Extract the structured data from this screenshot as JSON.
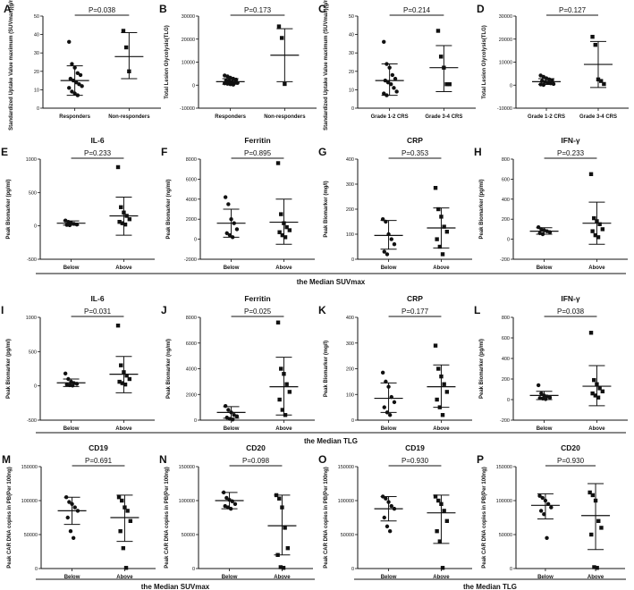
{
  "chart_data": [
    {
      "id": "A",
      "type": "scatter",
      "title": "",
      "pvalue": "P=0.038",
      "ylabel": "Standardized Uptake Value maximum (SUVmax)(g/ml)",
      "ylim": [
        0,
        50
      ],
      "yticks": [
        0,
        10,
        20,
        30,
        40,
        50
      ],
      "categories": [
        "Responders",
        "Non-responders"
      ],
      "groups": [
        {
          "name": "Responders",
          "marker": "circle",
          "points": [
            36,
            24,
            22,
            19,
            18,
            16,
            15,
            14,
            13,
            12,
            11,
            9,
            8,
            7
          ],
          "mean": 15,
          "sd_low": 7,
          "sd_high": 23
        },
        {
          "name": "Non-responders",
          "marker": "square",
          "points": [
            42,
            33,
            20
          ],
          "mean": 28,
          "sd_low": 16,
          "sd_high": 41
        }
      ]
    },
    {
      "id": "B",
      "type": "scatter",
      "title": "",
      "pvalue": "P=0.173",
      "ylabel": "Total Lesion Glycolysis(TLG)",
      "ylim": [
        -10000,
        30000
      ],
      "yticks": [
        -10000,
        0,
        10000,
        20000,
        30000
      ],
      "categories": [
        "Responders",
        "Non-responders"
      ],
      "groups": [
        {
          "name": "Responders",
          "marker": "circle",
          "points": [
            4200,
            3800,
            3200,
            2800,
            2400,
            2000,
            1800,
            1500,
            1200,
            1000,
            800,
            600,
            400,
            200
          ],
          "mean": 1500,
          "sd_low": 400,
          "sd_high": 2800
        },
        {
          "name": "Non-responders",
          "marker": "square",
          "points": [
            25500,
            20500,
            500
          ],
          "mean": 13000,
          "sd_low": 1500,
          "sd_high": 24500
        }
      ]
    },
    {
      "id": "C",
      "type": "scatter",
      "title": "",
      "pvalue": "P=0.214",
      "ylabel": "Standardized Uptake Value maximum (SUVmax)(g/ml)",
      "ylim": [
        0,
        50
      ],
      "yticks": [
        0,
        10,
        20,
        30,
        40,
        50
      ],
      "categories": [
        "Grade 1-2 CRS",
        "Grade 3-4 CRS"
      ],
      "groups": [
        {
          "name": "Grade 1-2 CRS",
          "marker": "circle",
          "points": [
            36,
            24,
            22,
            18,
            16,
            15,
            14,
            13,
            11,
            9,
            8,
            7
          ],
          "mean": 15,
          "sd_low": 7,
          "sd_high": 24
        },
        {
          "name": "Grade 3-4 CRS",
          "marker": "square",
          "points": [
            42,
            28,
            22,
            13,
            13
          ],
          "mean": 22,
          "sd_low": 9,
          "sd_high": 34
        }
      ]
    },
    {
      "id": "D",
      "type": "scatter",
      "title": "",
      "pvalue": "P=0.127",
      "ylabel": "Total Lesion Glycolysis(TLG)",
      "ylim": [
        -10000,
        30000
      ],
      "yticks": [
        -10000,
        0,
        10000,
        20000,
        30000
      ],
      "categories": [
        "Grade 1-2 CRS",
        "Grade 3-4 CRS"
      ],
      "groups": [
        {
          "name": "Grade 1-2 CRS",
          "marker": "circle",
          "points": [
            4200,
            3600,
            3000,
            2500,
            2100,
            1800,
            1400,
            1100,
            800,
            500,
            300,
            100
          ],
          "mean": 1500,
          "sd_low": 300,
          "sd_high": 2800
        },
        {
          "name": "Grade 3-4 CRS",
          "marker": "square",
          "points": [
            21000,
            17500,
            2500,
            1800,
            500
          ],
          "mean": 9000,
          "sd_low": -1000,
          "sd_high": 19000
        }
      ]
    },
    {
      "id": "E",
      "type": "scatter",
      "title": "IL-6",
      "pvalue": "P=0.233",
      "ylabel": "Peak Biomarker (pg/ml)",
      "ylim": [
        -500,
        1000
      ],
      "yticks": [
        -500,
        0,
        500,
        1000
      ],
      "categories": [
        "Below",
        "Above"
      ],
      "groups": [
        {
          "name": "Below",
          "marker": "circle",
          "points": [
            80,
            60,
            45,
            30,
            20,
            15,
            10
          ],
          "mean": 40,
          "sd_low": 10,
          "sd_high": 75
        },
        {
          "name": "Above",
          "marker": "square",
          "points": [
            880,
            280,
            200,
            150,
            100,
            60,
            40,
            20
          ],
          "mean": 150,
          "sd_low": -140,
          "sd_high": 430
        }
      ]
    },
    {
      "id": "F",
      "type": "scatter",
      "title": "Ferritin",
      "pvalue": "P=0.895",
      "ylabel": "Peak Biomarker (ng/ml)",
      "ylim": [
        -2000,
        8000
      ],
      "yticks": [
        -2000,
        0,
        2000,
        4000,
        6000,
        8000
      ],
      "categories": [
        "Below",
        "Above"
      ],
      "groups": [
        {
          "name": "Below",
          "marker": "circle",
          "points": [
            4200,
            3500,
            2000,
            1600,
            1000,
            600,
            400,
            200
          ],
          "mean": 1600,
          "sd_low": 200,
          "sd_high": 3000
        },
        {
          "name": "Above",
          "marker": "square",
          "points": [
            7600,
            2500,
            1600,
            1200,
            900,
            700,
            400,
            200
          ],
          "mean": 1700,
          "sd_low": -500,
          "sd_high": 4000
        }
      ]
    },
    {
      "id": "G",
      "type": "scatter",
      "title": "CRP",
      "pvalue": "P=0.353",
      "ylabel": "Peak Biomarker (mg/l)",
      "ylim": [
        0,
        400
      ],
      "yticks": [
        0,
        100,
        200,
        300,
        400
      ],
      "categories": [
        "Below",
        "Above"
      ],
      "groups": [
        {
          "name": "Below",
          "marker": "circle",
          "points": [
            160,
            150,
            100,
            80,
            60,
            30,
            20
          ],
          "mean": 95,
          "sd_low": 40,
          "sd_high": 155
        },
        {
          "name": "Above",
          "marker": "square",
          "points": [
            285,
            200,
            170,
            130,
            110,
            80,
            50,
            20
          ],
          "mean": 125,
          "sd_low": 45,
          "sd_high": 205
        }
      ]
    },
    {
      "id": "H",
      "type": "scatter",
      "title": "IFN-γ",
      "pvalue": "P=0.233",
      "ylabel": "Peak Biomarker (pg/ml)",
      "ylim": [
        -200,
        800
      ],
      "yticks": [
        -200,
        0,
        200,
        400,
        600,
        800
      ],
      "categories": [
        "Below",
        "Above"
      ],
      "groups": [
        {
          "name": "Below",
          "marker": "circle",
          "points": [
            120,
            100,
            90,
            80,
            70,
            60,
            50
          ],
          "mean": 80,
          "sd_low": 50,
          "sd_high": 115
        },
        {
          "name": "Above",
          "marker": "square",
          "points": [
            650,
            210,
            180,
            150,
            100,
            80,
            40,
            20
          ],
          "mean": 160,
          "sd_low": -50,
          "sd_high": 370
        }
      ]
    },
    {
      "id": "I",
      "type": "scatter",
      "title": "IL-6",
      "pvalue": "P=0.031",
      "ylabel": "Peak Biomarker (pg/ml)",
      "ylim": [
        -500,
        1000
      ],
      "yticks": [
        -500,
        0,
        500,
        1000
      ],
      "categories": [
        "Below",
        "Above"
      ],
      "groups": [
        {
          "name": "Below",
          "marker": "circle",
          "points": [
            180,
            100,
            60,
            40,
            30,
            20,
            10,
            5
          ],
          "mean": 45,
          "sd_low": -10,
          "sd_high": 100
        },
        {
          "name": "Above",
          "marker": "square",
          "points": [
            880,
            300,
            200,
            150,
            100,
            60,
            40,
            20
          ],
          "mean": 170,
          "sd_low": -100,
          "sd_high": 430
        }
      ]
    },
    {
      "id": "J",
      "type": "scatter",
      "title": "Ferritin",
      "pvalue": "P=0.025",
      "ylabel": "Peak Biomarker (ng/ml)",
      "ylim": [
        0,
        8000
      ],
      "yticks": [
        0,
        2000,
        4000,
        6000,
        8000
      ],
      "categories": [
        "Below",
        "Above"
      ],
      "groups": [
        {
          "name": "Below",
          "marker": "circle",
          "points": [
            1100,
            800,
            600,
            400,
            300,
            200,
            100,
            50
          ],
          "mean": 600,
          "sd_low": 150,
          "sd_high": 1050
        },
        {
          "name": "Above",
          "marker": "square",
          "points": [
            7600,
            4000,
            3600,
            2800,
            2200,
            1600,
            800,
            400
          ],
          "mean": 2600,
          "sd_low": 400,
          "sd_high": 4900
        }
      ]
    },
    {
      "id": "K",
      "type": "scatter",
      "title": "CRP",
      "pvalue": "P=0.177",
      "ylabel": "Peak Biomarker (mg/l)",
      "ylim": [
        0,
        400
      ],
      "yticks": [
        0,
        100,
        200,
        300,
        400
      ],
      "categories": [
        "Below",
        "Above"
      ],
      "groups": [
        {
          "name": "Below",
          "marker": "circle",
          "points": [
            185,
            150,
            130,
            90,
            70,
            50,
            30,
            20
          ],
          "mean": 85,
          "sd_low": 30,
          "sd_high": 145
        },
        {
          "name": "Above",
          "marker": "square",
          "points": [
            290,
            200,
            170,
            140,
            110,
            80,
            50,
            20
          ],
          "mean": 130,
          "sd_low": 50,
          "sd_high": 215
        }
      ]
    },
    {
      "id": "L",
      "type": "scatter",
      "title": "IFN-γ",
      "pvalue": "P=0.038",
      "ylabel": "Peak Biomarker (pg/ml)",
      "ylim": [
        -200,
        800
      ],
      "yticks": [
        -200,
        0,
        200,
        400,
        600,
        800
      ],
      "categories": [
        "Below",
        "Above"
      ],
      "groups": [
        {
          "name": "Below",
          "marker": "circle",
          "points": [
            140,
            60,
            40,
            30,
            20,
            15,
            10,
            5
          ],
          "mean": 40,
          "sd_low": 0,
          "sd_high": 80
        },
        {
          "name": "Above",
          "marker": "square",
          "points": [
            650,
            190,
            150,
            110,
            80,
            60,
            40,
            20
          ],
          "mean": 130,
          "sd_low": -60,
          "sd_high": 330
        }
      ]
    },
    {
      "id": "M",
      "type": "scatter",
      "title": "CD19",
      "pvalue": "P=0.691",
      "ylabel": "Peak CAR DNA copies in PB(Per 100ng)",
      "ylim": [
        0,
        150000
      ],
      "yticks": [
        0,
        50000,
        100000,
        150000
      ],
      "categories": [
        "Below",
        "Above"
      ],
      "groups": [
        {
          "name": "Below",
          "marker": "circle",
          "points": [
            105000,
            98000,
            95000,
            90000,
            85000,
            75000,
            55000,
            45000
          ],
          "mean": 85000,
          "sd_low": 65000,
          "sd_high": 105000
        },
        {
          "name": "Above",
          "marker": "square",
          "points": [
            105000,
            100000,
            90000,
            85000,
            70000,
            55000,
            30000,
            1000
          ],
          "mean": 75000,
          "sd_low": 40000,
          "sd_high": 108000
        }
      ]
    },
    {
      "id": "N",
      "type": "scatter",
      "title": "CD20",
      "pvalue": "P=0.098",
      "ylabel": "Peak CAR DNA copies in PB(Per 100ng)",
      "ylim": [
        0,
        150000
      ],
      "yticks": [
        0,
        50000,
        100000,
        150000
      ],
      "categories": [
        "Below",
        "Above"
      ],
      "groups": [
        {
          "name": "Below",
          "marker": "circle",
          "points": [
            112000,
            104000,
            101000,
            99000,
            95000,
            92000,
            90000,
            88000
          ],
          "mean": 100000,
          "sd_low": 88000,
          "sd_high": 112000
        },
        {
          "name": "Above",
          "marker": "square",
          "points": [
            108000,
            103000,
            90000,
            60000,
            30000,
            20000,
            2000,
            1000
          ],
          "mean": 63000,
          "sd_low": 20000,
          "sd_high": 108000
        }
      ]
    },
    {
      "id": "O",
      "type": "scatter",
      "title": "CD19",
      "pvalue": "P=0.930",
      "ylabel": "Peak CAR DNA copies in PB(Per 100ng)",
      "ylim": [
        0,
        150000
      ],
      "yticks": [
        0,
        50000,
        100000,
        150000
      ],
      "categories": [
        "Below",
        "Above"
      ],
      "groups": [
        {
          "name": "Below",
          "marker": "circle",
          "points": [
            106000,
            103000,
            98000,
            92000,
            88000,
            75000,
            62000,
            55000
          ],
          "mean": 88000,
          "sd_low": 70000,
          "sd_high": 106000
        },
        {
          "name": "Above",
          "marker": "square",
          "points": [
            106000,
            100000,
            95000,
            85000,
            70000,
            55000,
            40000,
            1000
          ],
          "mean": 82000,
          "sd_low": 37000,
          "sd_high": 108000
        }
      ]
    },
    {
      "id": "P",
      "type": "scatter",
      "title": "CD20",
      "pvalue": "P=0.930",
      "ylabel": "Peak CAR DNA copies in PB(Per 100ng)",
      "ylim": [
        0,
        150000
      ],
      "yticks": [
        0,
        50000,
        100000,
        150000
      ],
      "categories": [
        "Below",
        "Above"
      ],
      "groups": [
        {
          "name": "Below",
          "marker": "circle",
          "points": [
            107000,
            104000,
            100000,
            95000,
            90000,
            85000,
            80000,
            45000
          ],
          "mean": 93000,
          "sd_low": 73000,
          "sd_high": 110000
        },
        {
          "name": "Above",
          "marker": "square",
          "points": [
            112000,
            108000,
            100000,
            70000,
            60000,
            50000,
            2000,
            1000
          ],
          "mean": 78000,
          "sd_low": 28000,
          "sd_high": 125000
        }
      ]
    }
  ],
  "footers": [
    {
      "label": "the Median SUVmax"
    },
    {
      "label": "the Median TLG"
    },
    {
      "label": "the Median SUVmax"
    },
    {
      "label": "the Median TLG"
    }
  ]
}
